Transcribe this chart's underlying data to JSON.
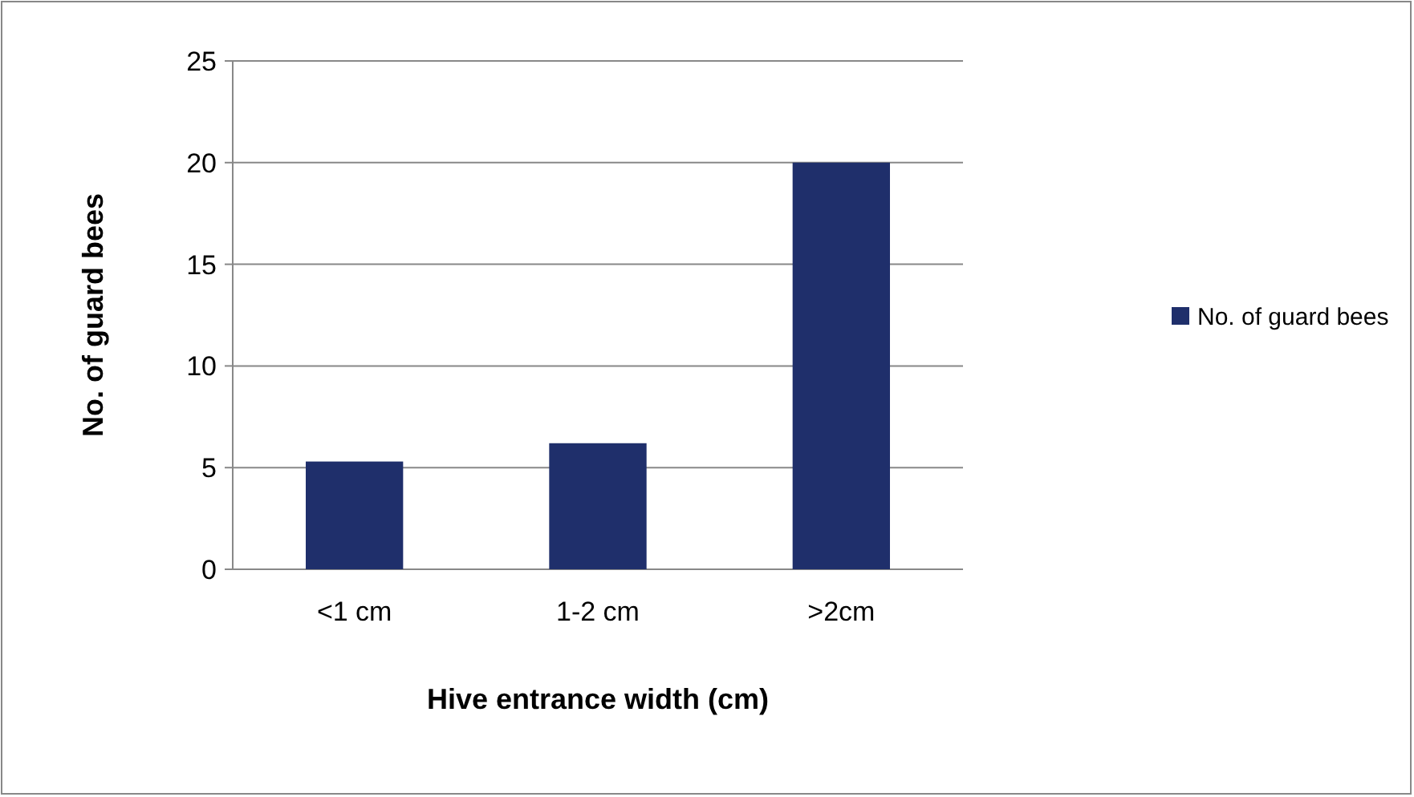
{
  "chart_data": {
    "type": "bar",
    "categories": [
      "<1 cm",
      "1-2 cm",
      ">2cm"
    ],
    "series": [
      {
        "name": "No. of guard bees",
        "color": "#1f2f6b",
        "values": [
          5.3,
          6.2,
          20
        ]
      }
    ],
    "xlabel": "Hive entrance width (cm)",
    "ylabel": "No. of guard bees",
    "ylim": [
      0,
      25
    ],
    "yticks": [
      0,
      5,
      10,
      15,
      20,
      25
    ],
    "grid": "y",
    "legend": "right"
  }
}
